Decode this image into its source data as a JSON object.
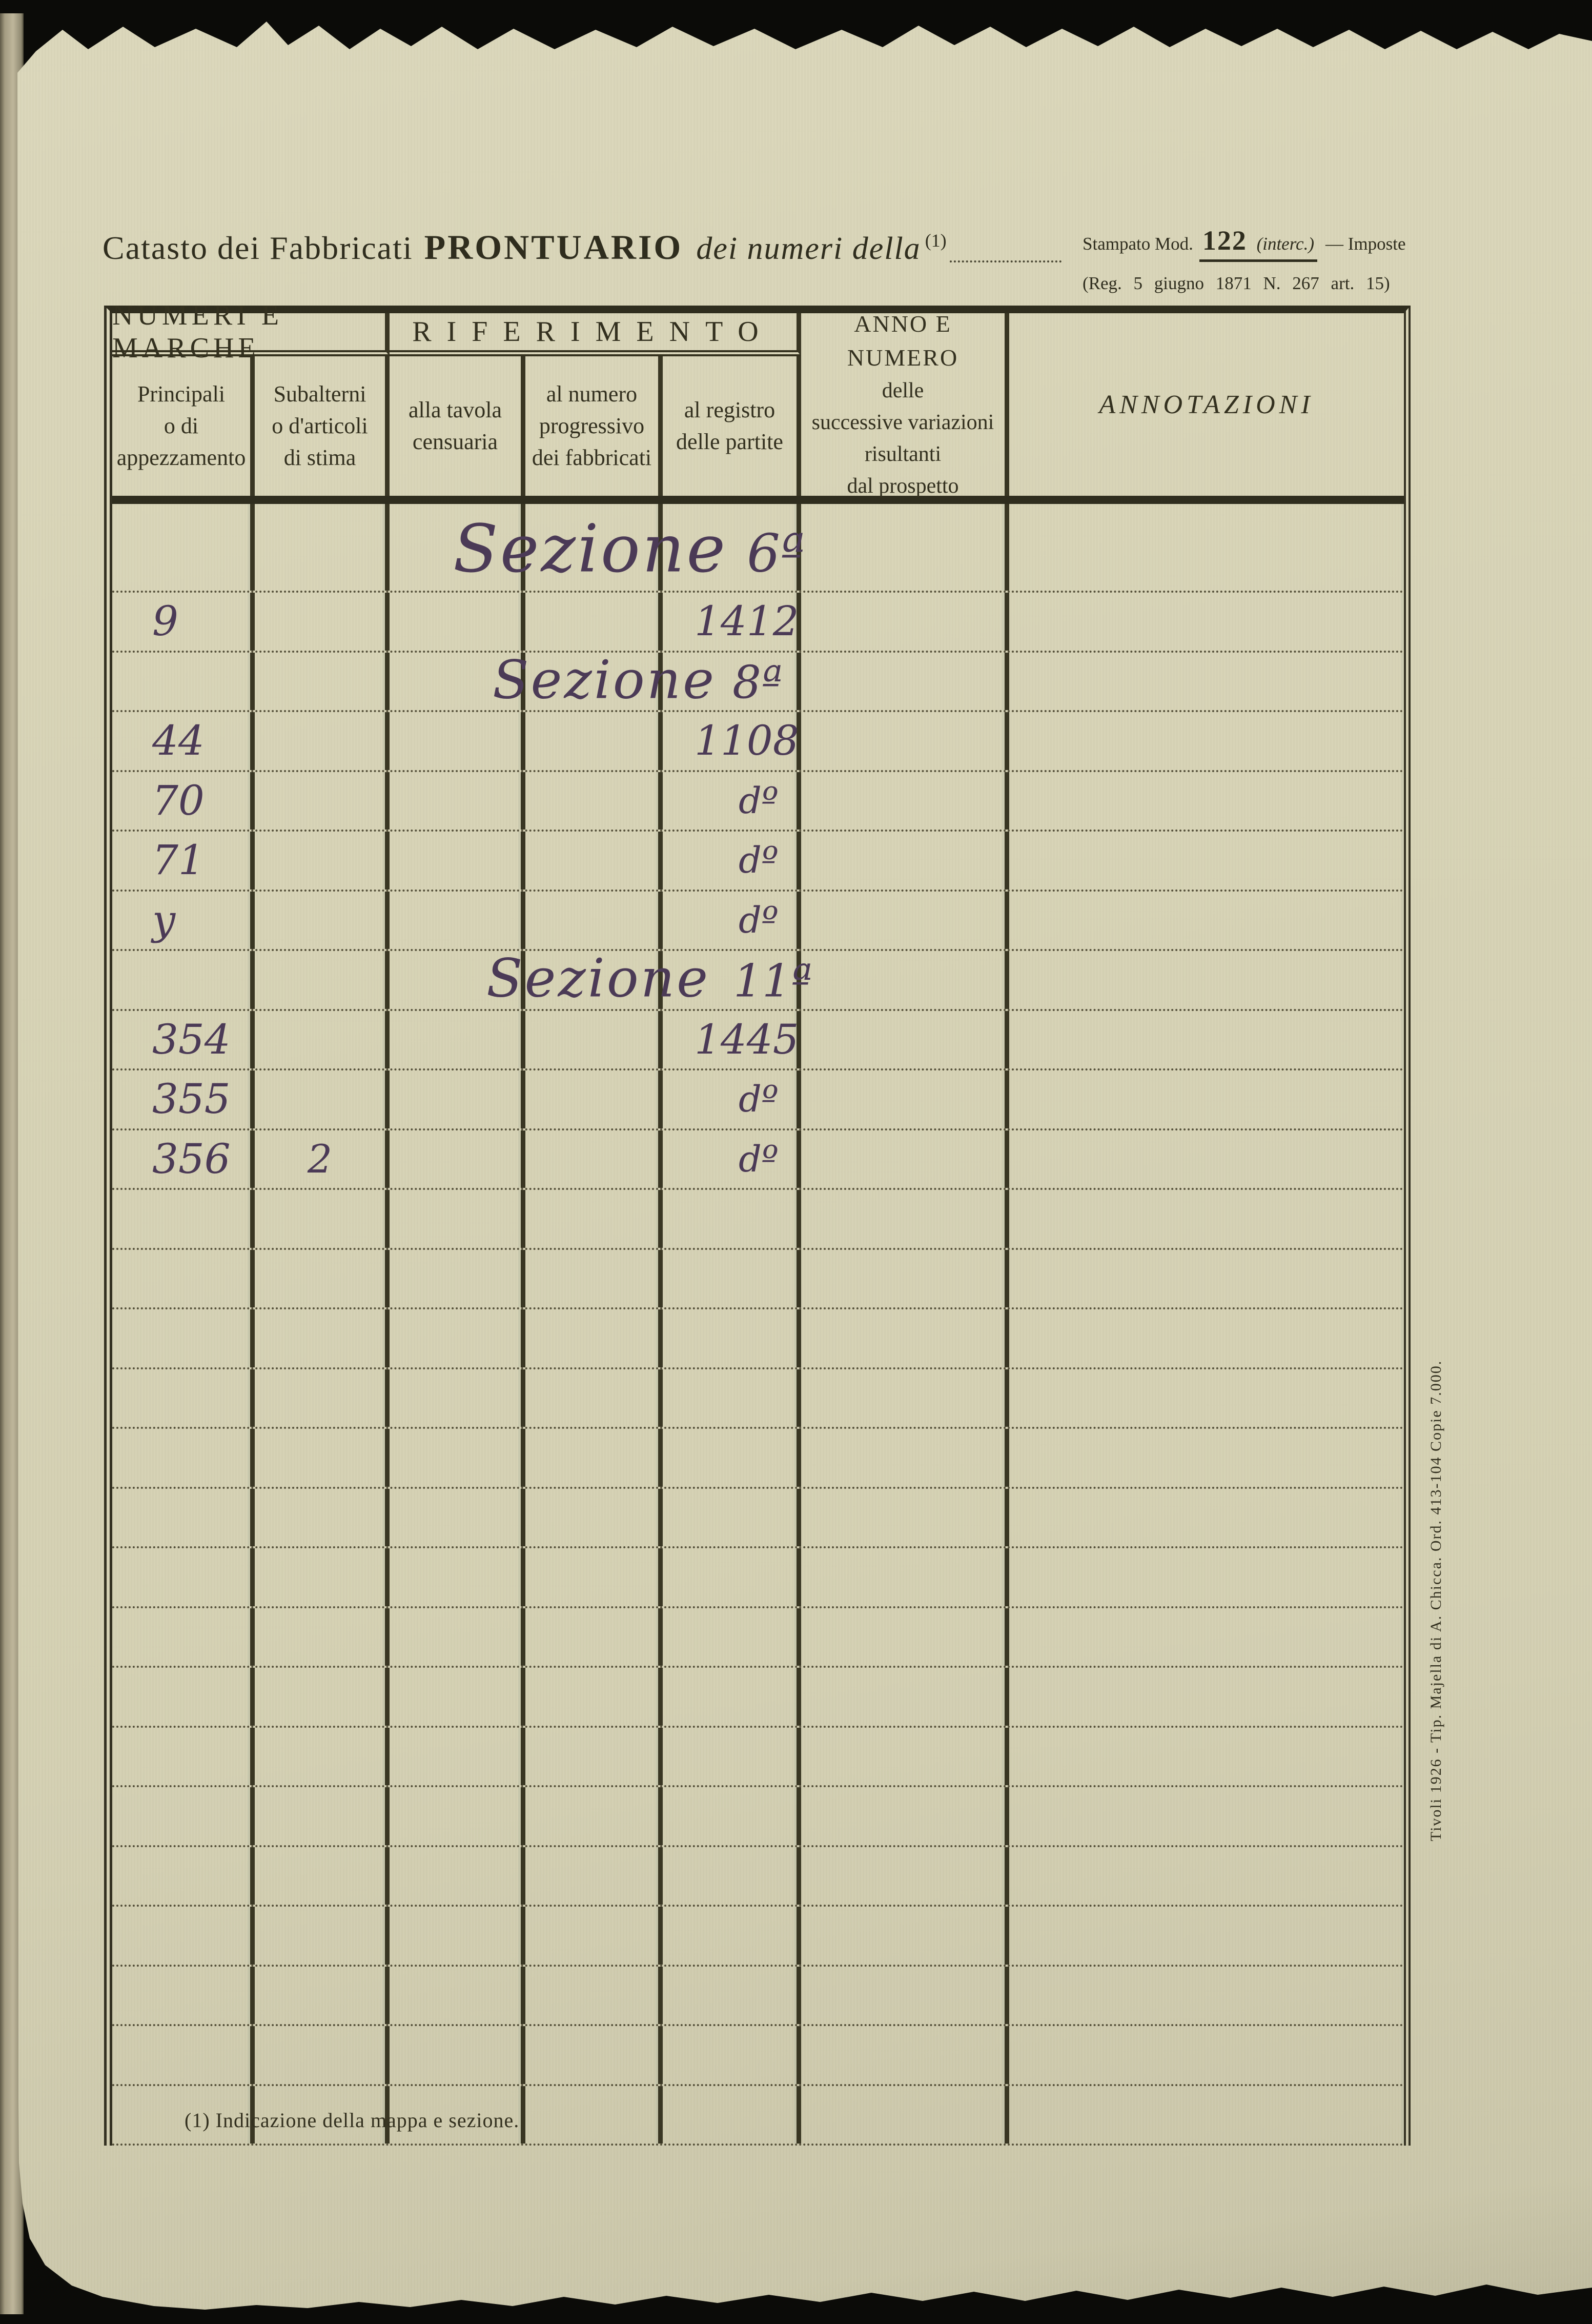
{
  "header": {
    "title_regular": "Catasto dei Fabbricati",
    "title_bold": "PRONTUARIO",
    "title_italic": "dei numeri della",
    "title_footref": "(1)",
    "stamp": {
      "line1_prefix": "Stampato Mod.",
      "line1_number": "122",
      "line1_interc": "(interc.)",
      "line1_end": "— Imposte",
      "line2": "(Reg. 5 giugno 1871  N. 267  art. 15)"
    }
  },
  "table": {
    "group1": "NUMERI E MARCHE",
    "group2": "RIFERIMENTO",
    "subcols": [
      "Principali\no di\nappezzamento",
      "Subalterni\no d'articoli\ndi stima",
      "alla tavola\ncensuaria",
      "al numero\nprogressivo\ndei fabbricati",
      "al registro\ndelle partite"
    ],
    "anno_lines": [
      "ANNO E NUMERO",
      "delle",
      "successive variazioni",
      "risultanti",
      "dal prospetto"
    ],
    "col_annotazioni": "ANNOTAZIONI",
    "ditto_mark": "dº",
    "rows": [
      {
        "kind": "section",
        "variant": "v1",
        "word": "Sezione",
        "number": "6ª"
      },
      {
        "kind": "entry",
        "principali": "9",
        "registro": "1412"
      },
      {
        "kind": "section",
        "variant": "v2",
        "word": "Sezione",
        "number": "8ª"
      },
      {
        "kind": "entry",
        "principali": "44",
        "registro": "1108"
      },
      {
        "kind": "entry",
        "principali": "70",
        "registro": "dº"
      },
      {
        "kind": "entry",
        "principali": "71",
        "registro": "dº"
      },
      {
        "kind": "entry",
        "principali": "y",
        "registro": "dº"
      },
      {
        "kind": "section",
        "variant": "v3",
        "word": "Sezione",
        "number": "11ª"
      },
      {
        "kind": "entry",
        "principali": "354",
        "registro": "1445"
      },
      {
        "kind": "entry",
        "principali": "355",
        "registro": "dº"
      },
      {
        "kind": "entry",
        "principali": "356",
        "subalterni": "2",
        "registro": "dº"
      },
      {
        "kind": "blank"
      },
      {
        "kind": "blank"
      },
      {
        "kind": "blank"
      },
      {
        "kind": "blank"
      },
      {
        "kind": "blank"
      },
      {
        "kind": "blank"
      },
      {
        "kind": "blank"
      },
      {
        "kind": "blank"
      },
      {
        "kind": "blank"
      },
      {
        "kind": "blank"
      },
      {
        "kind": "blank"
      },
      {
        "kind": "blank"
      },
      {
        "kind": "blank"
      },
      {
        "kind": "blank"
      },
      {
        "kind": "blank"
      },
      {
        "kind": "blank"
      }
    ]
  },
  "footnote": "(1) Indicazione della mappa e sezione.",
  "imprint": "Tivoli 1926 - Tip. Majella di A. Chicca. Ord. 413-104 Copie 7.000."
}
